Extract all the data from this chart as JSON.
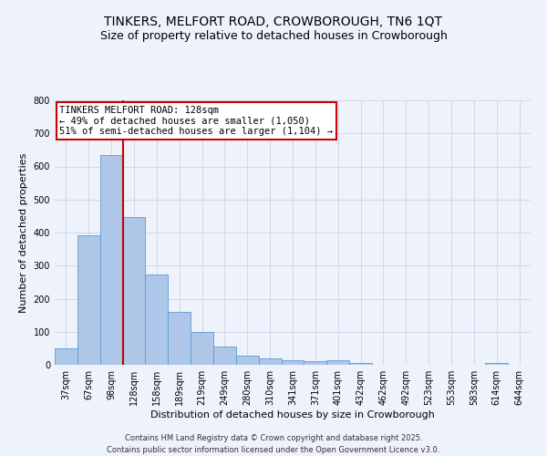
{
  "title": "TINKERS, MELFORT ROAD, CROWBOROUGH, TN6 1QT",
  "subtitle": "Size of property relative to detached houses in Crowborough",
  "xlabel": "Distribution of detached houses by size in Crowborough",
  "ylabel": "Number of detached properties",
  "bar_labels": [
    "37sqm",
    "67sqm",
    "98sqm",
    "128sqm",
    "158sqm",
    "189sqm",
    "219sqm",
    "249sqm",
    "280sqm",
    "310sqm",
    "341sqm",
    "371sqm",
    "401sqm",
    "432sqm",
    "462sqm",
    "492sqm",
    "523sqm",
    "553sqm",
    "583sqm",
    "614sqm",
    "644sqm"
  ],
  "bar_values": [
    50,
    393,
    635,
    447,
    272,
    160,
    100,
    55,
    28,
    18,
    15,
    12,
    15,
    5,
    0,
    0,
    0,
    0,
    0,
    5,
    0
  ],
  "bar_color": "#aec6e8",
  "bar_edge_color": "#5b9bd5",
  "vline_color": "#cc0000",
  "vline_pos": 2.5,
  "ylim": [
    0,
    800
  ],
  "yticks": [
    0,
    100,
    200,
    300,
    400,
    500,
    600,
    700,
    800
  ],
  "annotation_text": "TINKERS MELFORT ROAD: 128sqm\n← 49% of detached houses are smaller (1,050)\n51% of semi-detached houses are larger (1,104) →",
  "annotation_box_color": "#cc0000",
  "footer_line1": "Contains HM Land Registry data © Crown copyright and database right 2025.",
  "footer_line2": "Contains public sector information licensed under the Open Government Licence v3.0.",
  "bg_color": "#eef2fb",
  "grid_color": "#c8d4e8",
  "title_fontsize": 10,
  "subtitle_fontsize": 9,
  "ylabel_fontsize": 8,
  "xlabel_fontsize": 8,
  "tick_fontsize": 7,
  "annotation_fontsize": 7.5,
  "footer_fontsize": 6
}
